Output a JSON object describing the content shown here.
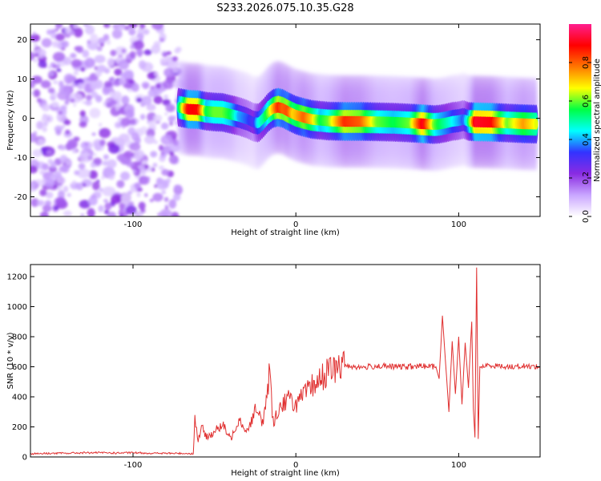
{
  "title": "S233.2026.075.10.35.G28",
  "colorbar": {
    "label": "Normalized spectral amplitude",
    "range": [
      0.0,
      1.0
    ],
    "ticks": [
      "0.0",
      "0.2",
      "0.4",
      "0.6",
      "0.8"
    ],
    "tick_values": [
      0.0,
      0.2,
      0.4,
      0.6,
      0.8
    ],
    "colors": [
      "#ffffff",
      "#c9a6ff",
      "#8a2be2",
      "#3333ff",
      "#00ffff",
      "#00ff44",
      "#ffff00",
      "#ff7700",
      "#ff0000",
      "#ff1f8f"
    ]
  },
  "chart_data": [
    {
      "type": "heatmap",
      "title": "S233.2026.075.10.35.G28",
      "xlabel": "Height of straight line (km)",
      "ylabel": "Frequency (Hz)",
      "xlim": [
        -163,
        150
      ],
      "ylim": [
        -25,
        24
      ],
      "xticks": [
        -100,
        0,
        100
      ],
      "xtick_labels": [
        "-100",
        "0",
        "100"
      ],
      "yticks": [
        -20,
        -10,
        0,
        10,
        20
      ],
      "ytick_labels": [
        "-20",
        "-10",
        "0",
        "10",
        "20"
      ],
      "noise_region_x": [
        -163,
        -72
      ],
      "ridge": {
        "x": [
          -72,
          -66,
          -60,
          -55,
          -50,
          -45,
          -40,
          -35,
          -30,
          -26,
          -23,
          -20,
          -17,
          -14,
          -11,
          -8,
          -5,
          -2,
          0,
          5,
          10,
          15,
          20,
          30,
          40,
          50,
          60,
          70,
          78,
          85,
          88,
          92,
          96,
          100,
          103,
          106,
          110,
          120,
          130,
          140,
          148
        ],
        "y": [
          2.8,
          2.3,
          2.2,
          1.8,
          1.6,
          1.5,
          1.0,
          0.5,
          -0.2,
          -1.0,
          -1.2,
          0.0,
          1.5,
          2.5,
          2.8,
          2.5,
          1.8,
          1.2,
          0.8,
          0.2,
          -0.3,
          -0.5,
          -0.7,
          -0.8,
          -0.8,
          -0.9,
          -1.0,
          -1.2,
          -1.4,
          -1.6,
          -1.5,
          -1.2,
          -0.8,
          -0.6,
          -0.3,
          -0.8,
          -0.9,
          -1.0,
          -1.2,
          -1.4,
          -1.5
        ],
        "amplitude": [
          0.5,
          0.9,
          0.88,
          0.55,
          0.6,
          0.6,
          0.55,
          0.4,
          0.35,
          0.3,
          0.45,
          0.5,
          0.6,
          0.72,
          0.85,
          0.8,
          0.82,
          0.7,
          0.72,
          0.8,
          0.7,
          0.55,
          0.6,
          0.85,
          0.8,
          0.6,
          0.55,
          0.6,
          0.92,
          0.6,
          0.55,
          0.5,
          0.45,
          0.4,
          0.35,
          0.5,
          0.92,
          0.9,
          0.6,
          0.75,
          0.65
        ]
      }
    },
    {
      "type": "line",
      "xlabel": "Height of straight line (km)",
      "ylabel": "SNR (10 * v/v)",
      "xlim": [
        -163,
        150
      ],
      "ylim": [
        0,
        1280
      ],
      "xticks": [
        -100,
        0,
        100
      ],
      "xtick_labels": [
        "-100",
        "0",
        "100"
      ],
      "yticks": [
        0,
        200,
        400,
        600,
        800,
        1000,
        1200
      ],
      "ytick_labels": [
        "0",
        "200",
        "400",
        "600",
        "800",
        "1000",
        "1200"
      ],
      "color": "#e03030",
      "x": [
        -163,
        -150,
        -140,
        -130,
        -120,
        -110,
        -100,
        -90,
        -80,
        -70,
        -63,
        -62,
        -60,
        -58,
        -55,
        -50,
        -45,
        -40,
        -35,
        -30,
        -25,
        -20,
        -16,
        -15,
        -14,
        -10,
        -5,
        0,
        5,
        10,
        15,
        20,
        25,
        30,
        40,
        50,
        60,
        70,
        80,
        86,
        88,
        90,
        92,
        94,
        96,
        98,
        100,
        102,
        104,
        106,
        108,
        109,
        110,
        111,
        112,
        113,
        120,
        130,
        140,
        150
      ],
      "y": [
        22,
        24,
        25,
        28,
        28,
        26,
        28,
        25,
        24,
        24,
        22,
        250,
        110,
        200,
        130,
        170,
        210,
        120,
        260,
        170,
        310,
        230,
        580,
        390,
        230,
        330,
        390,
        350,
        410,
        470,
        520,
        570,
        590,
        610,
        595,
        605,
        600,
        600,
        605,
        600,
        520,
        940,
        620,
        300,
        770,
        420,
        800,
        350,
        760,
        460,
        900,
        320,
        130,
        1260,
        120,
        600,
        610,
        600,
        605,
        600
      ]
    }
  ]
}
